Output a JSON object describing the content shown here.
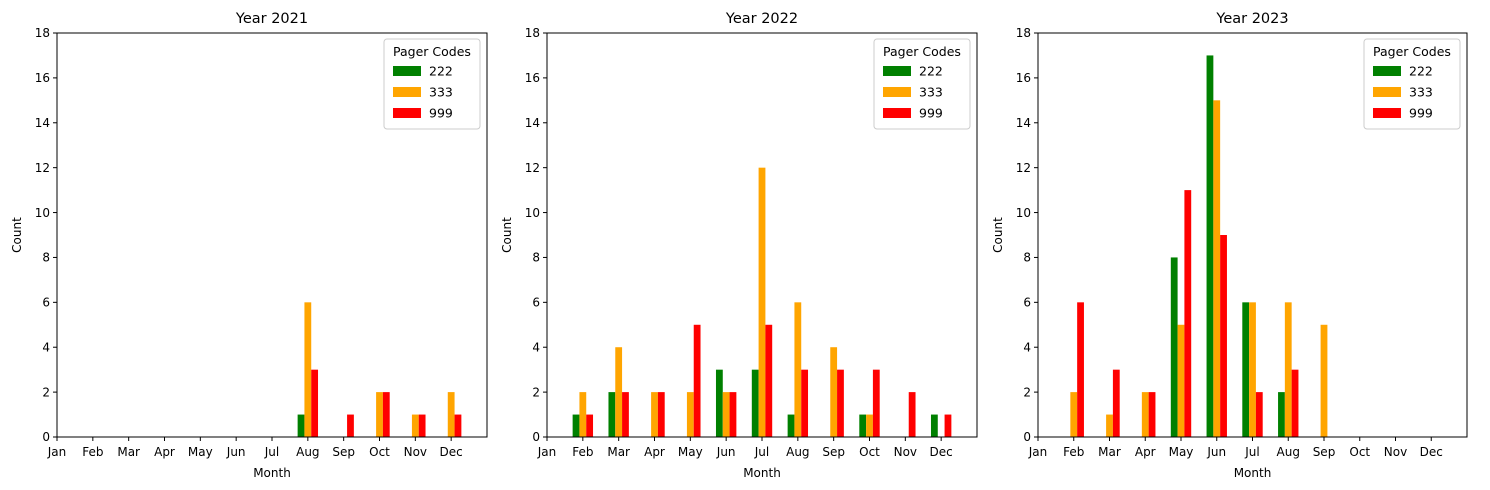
{
  "chart_data": [
    {
      "type": "bar",
      "title": "Year 2021",
      "xlabel": "Month",
      "ylabel": "Count",
      "ylim": [
        0,
        18
      ],
      "yticks": [
        0,
        2,
        4,
        6,
        8,
        10,
        12,
        14,
        16,
        18
      ],
      "categories": [
        "Jan",
        "Feb",
        "Mar",
        "Apr",
        "May",
        "Jun",
        "Jul",
        "Aug",
        "Sep",
        "Oct",
        "Nov",
        "Dec"
      ],
      "legend": {
        "title": "Pager Codes",
        "position": "top-right"
      },
      "series": [
        {
          "name": "222",
          "color": "#008000",
          "values": [
            0,
            0,
            0,
            0,
            0,
            0,
            0,
            1,
            0,
            0,
            0,
            0
          ]
        },
        {
          "name": "333",
          "color": "#ffa500",
          "values": [
            0,
            0,
            0,
            0,
            0,
            0,
            0,
            6,
            0,
            2,
            1,
            2
          ]
        },
        {
          "name": "999",
          "color": "#ff0000",
          "values": [
            0,
            0,
            0,
            0,
            0,
            0,
            0,
            3,
            1,
            2,
            1,
            1
          ]
        }
      ]
    },
    {
      "type": "bar",
      "title": "Year 2022",
      "xlabel": "Month",
      "ylabel": "Count",
      "ylim": [
        0,
        18
      ],
      "yticks": [
        0,
        2,
        4,
        6,
        8,
        10,
        12,
        14,
        16,
        18
      ],
      "categories": [
        "Jan",
        "Feb",
        "Mar",
        "Apr",
        "May",
        "Jun",
        "Jul",
        "Aug",
        "Sep",
        "Oct",
        "Nov",
        "Dec"
      ],
      "legend": {
        "title": "Pager Codes",
        "position": "top-right"
      },
      "series": [
        {
          "name": "222",
          "color": "#008000",
          "values": [
            0,
            1,
            2,
            0,
            0,
            3,
            3,
            1,
            0,
            1,
            0,
            1
          ]
        },
        {
          "name": "333",
          "color": "#ffa500",
          "values": [
            0,
            2,
            4,
            2,
            2,
            2,
            12,
            6,
            4,
            1,
            0,
            0
          ]
        },
        {
          "name": "999",
          "color": "#ff0000",
          "values": [
            0,
            1,
            2,
            2,
            5,
            2,
            5,
            3,
            3,
            3,
            2,
            1
          ]
        }
      ]
    },
    {
      "type": "bar",
      "title": "Year 2023",
      "xlabel": "Month",
      "ylabel": "Count",
      "ylim": [
        0,
        18
      ],
      "yticks": [
        0,
        2,
        4,
        6,
        8,
        10,
        12,
        14,
        16,
        18
      ],
      "categories": [
        "Jan",
        "Feb",
        "Mar",
        "Apr",
        "May",
        "Jun",
        "Jul",
        "Aug",
        "Sep",
        "Oct",
        "Nov",
        "Dec"
      ],
      "legend": {
        "title": "Pager Codes",
        "position": "top-right"
      },
      "series": [
        {
          "name": "222",
          "color": "#008000",
          "values": [
            0,
            0,
            0,
            0,
            8,
            17,
            6,
            2,
            0,
            0,
            0,
            0
          ]
        },
        {
          "name": "333",
          "color": "#ffa500",
          "values": [
            0,
            2,
            1,
            2,
            5,
            15,
            6,
            6,
            5,
            0,
            0,
            0
          ]
        },
        {
          "name": "999",
          "color": "#ff0000",
          "values": [
            0,
            6,
            3,
            2,
            11,
            9,
            2,
            3,
            0,
            0,
            0,
            0
          ]
        }
      ]
    }
  ]
}
